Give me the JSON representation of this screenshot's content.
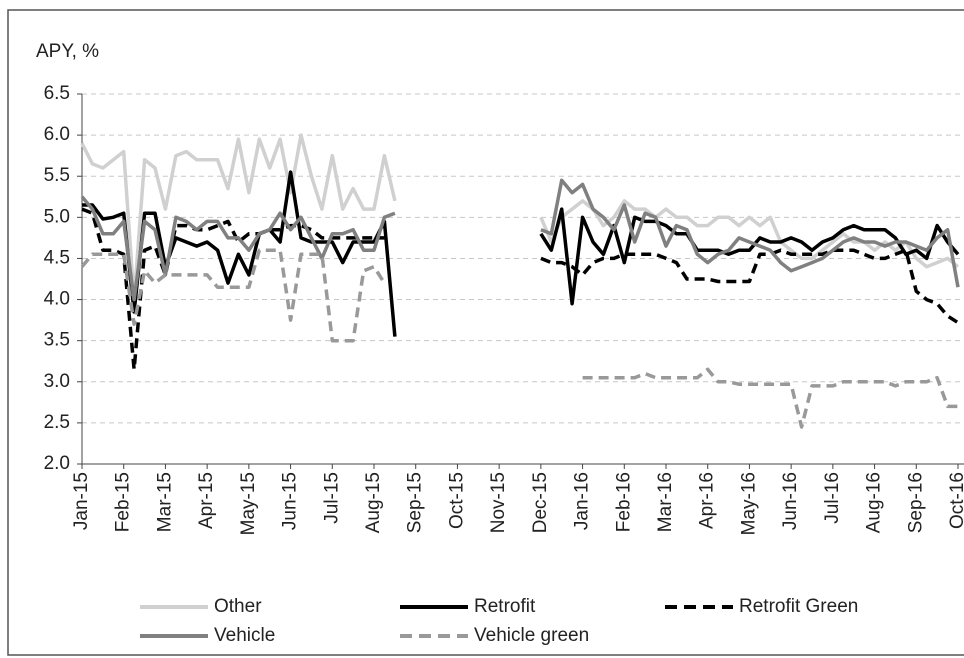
{
  "chart_data": {
    "type": "line",
    "y_label": "APY, %",
    "categories": [
      "Jan-15",
      null,
      null,
      null,
      "Feb-15",
      null,
      null,
      null,
      "Mar-15",
      null,
      null,
      null,
      "Apr-15",
      null,
      null,
      null,
      "May-15",
      null,
      null,
      null,
      "Jun-15",
      null,
      null,
      null,
      "Jul-15",
      null,
      null,
      null,
      "Aug-15",
      null,
      null,
      null,
      "Sep-15",
      null,
      null,
      null,
      "Oct-15",
      null,
      null,
      null,
      "Nov-15",
      null,
      null,
      null,
      "Dec-15",
      null,
      null,
      null,
      "Jan-16",
      null,
      null,
      null,
      "Feb-16",
      null,
      null,
      null,
      "Mar-16",
      null,
      null,
      null,
      "Apr-16",
      null,
      null,
      null,
      "May-16",
      null,
      null,
      null,
      "Jun-16",
      null,
      null,
      null,
      "Jul-16",
      null,
      null,
      null,
      "Aug-16",
      null,
      null,
      null,
      "Sep-16",
      null,
      null,
      null,
      "Oct-16"
    ],
    "ylim": [
      2.0,
      6.5
    ],
    "yticks": [
      {
        "value": 2,
        "label": "2.0"
      },
      2.5,
      {
        "value": 3,
        "label": "3.0"
      },
      3.5,
      {
        "value": 4,
        "label": "4.0"
      },
      4.5,
      {
        "value": 5,
        "label": "5.0"
      },
      5.5,
      {
        "value": 6,
        "label": "6.0"
      },
      6.5
    ],
    "grid": true,
    "legend": "bottom",
    "series": [
      {
        "name": "Other",
        "color": "#d0d0d0",
        "dashed": false,
        "values": [
          5.9,
          5.65,
          5.6,
          5.7,
          5.8,
          4.0,
          5.7,
          5.6,
          5.1,
          5.75,
          5.8,
          5.7,
          5.7,
          5.7,
          5.35,
          5.95,
          5.3,
          5.95,
          5.6,
          5.95,
          5.3,
          6.0,
          5.5,
          5.1,
          5.75,
          5.1,
          5.35,
          5.1,
          5.1,
          5.75,
          5.2,
          null,
          null,
          null,
          null,
          null,
          null,
          null,
          null,
          null,
          null,
          null,
          null,
          null,
          5.0,
          4.7,
          5.0,
          5.1,
          5.2,
          5.1,
          4.9,
          5.0,
          5.2,
          5.1,
          5.1,
          5.0,
          5.1,
          5.0,
          5.0,
          4.9,
          4.9,
          5.0,
          5.0,
          4.9,
          5.0,
          4.9,
          5.0,
          4.7,
          4.6,
          4.5,
          4.5,
          4.6,
          4.7,
          4.8,
          4.7,
          4.7,
          4.6,
          4.7,
          4.6,
          4.7,
          4.5,
          4.4,
          4.45,
          4.5,
          4.4
        ]
      },
      {
        "name": "Retrofit",
        "color": "#000000",
        "dashed": false,
        "values": [
          5.15,
          5.15,
          4.98,
          5.0,
          5.05,
          3.85,
          5.05,
          5.05,
          4.4,
          4.75,
          4.7,
          4.65,
          4.7,
          4.6,
          4.2,
          4.55,
          4.3,
          4.8,
          4.85,
          4.7,
          5.55,
          4.75,
          4.7,
          4.7,
          4.7,
          4.45,
          4.7,
          4.7,
          4.7,
          4.95,
          3.55,
          null,
          null,
          null,
          null,
          null,
          null,
          null,
          null,
          null,
          null,
          null,
          null,
          null,
          4.8,
          4.6,
          5.1,
          3.95,
          5.0,
          4.7,
          4.55,
          4.9,
          4.45,
          5.0,
          4.95,
          4.95,
          4.9,
          4.8,
          4.8,
          4.6,
          4.6,
          4.6,
          4.55,
          4.6,
          4.6,
          4.75,
          4.7,
          4.7,
          4.75,
          4.7,
          4.6,
          4.7,
          4.75,
          4.85,
          4.9,
          4.85,
          4.85,
          4.85,
          4.75,
          4.55,
          4.6,
          4.5,
          4.9,
          4.7,
          4.55
        ]
      },
      {
        "name": "Retrofit Green",
        "color": "#000000",
        "dashed": true,
        "values": [
          5.1,
          5.05,
          4.6,
          4.6,
          4.55,
          3.15,
          4.6,
          4.65,
          4.3,
          4.9,
          4.9,
          4.85,
          4.85,
          4.9,
          4.95,
          4.7,
          4.8,
          4.8,
          4.85,
          4.85,
          4.9,
          4.9,
          4.85,
          4.75,
          4.75,
          4.75,
          4.75,
          4.75,
          4.75,
          4.75,
          null,
          null,
          null,
          null,
          null,
          null,
          null,
          null,
          null,
          null,
          null,
          null,
          null,
          null,
          4.5,
          4.45,
          4.45,
          4.4,
          4.3,
          4.45,
          4.5,
          4.5,
          4.55,
          4.55,
          4.55,
          4.55,
          4.5,
          4.45,
          4.25,
          4.25,
          4.25,
          4.22,
          4.22,
          4.22,
          4.22,
          4.55,
          4.55,
          4.6,
          4.55,
          4.55,
          4.55,
          4.55,
          4.6,
          4.6,
          4.6,
          4.55,
          4.5,
          4.5,
          4.55,
          4.6,
          4.1,
          4.0,
          3.95,
          3.8,
          3.72
        ]
      },
      {
        "name": "Vehicle",
        "color": "#808080",
        "dashed": false,
        "values": [
          5.25,
          5.1,
          4.8,
          4.8,
          4.95,
          4.0,
          4.95,
          4.85,
          4.3,
          5.0,
          4.95,
          4.85,
          4.95,
          4.95,
          4.75,
          4.75,
          4.6,
          4.8,
          4.85,
          5.05,
          4.85,
          5.0,
          4.75,
          4.5,
          4.8,
          4.8,
          4.85,
          4.6,
          4.6,
          5.0,
          5.05,
          null,
          null,
          null,
          null,
          null,
          null,
          null,
          null,
          null,
          null,
          null,
          null,
          null,
          4.85,
          4.8,
          5.45,
          5.3,
          5.4,
          5.1,
          5.0,
          4.85,
          5.15,
          4.7,
          5.05,
          5.0,
          4.65,
          4.9,
          4.85,
          4.55,
          4.45,
          4.55,
          4.6,
          4.75,
          4.7,
          4.65,
          4.6,
          4.45,
          4.35,
          4.4,
          4.45,
          4.5,
          4.6,
          4.7,
          4.75,
          4.7,
          4.7,
          4.65,
          4.7,
          4.7,
          4.65,
          4.6,
          4.75,
          4.85,
          4.15
        ]
      },
      {
        "name": "Vehicle green",
        "color": "#999999",
        "dashed": true,
        "values": [
          4.4,
          4.55,
          4.55,
          4.55,
          4.55,
          3.7,
          4.35,
          4.2,
          4.3,
          4.3,
          4.3,
          4.3,
          4.3,
          4.15,
          4.15,
          4.15,
          4.15,
          4.6,
          4.6,
          4.6,
          3.75,
          4.55,
          4.55,
          4.55,
          3.5,
          3.5,
          3.5,
          4.35,
          4.4,
          4.2,
          null,
          null,
          null,
          null,
          null,
          null,
          null,
          null,
          null,
          null,
          null,
          null,
          null,
          null,
          null,
          null,
          null,
          null,
          3.05,
          3.05,
          3.05,
          3.05,
          3.05,
          3.05,
          3.1,
          3.05,
          3.05,
          3.05,
          3.05,
          3.05,
          3.15,
          3.0,
          3.0,
          2.97,
          2.97,
          2.97,
          2.97,
          2.97,
          2.97,
          2.45,
          2.95,
          2.95,
          2.95,
          3.0,
          3.0,
          3.0,
          3.0,
          3.0,
          2.95,
          3.0,
          3.0,
          3.0,
          3.05,
          2.7,
          2.7
        ]
      }
    ]
  }
}
